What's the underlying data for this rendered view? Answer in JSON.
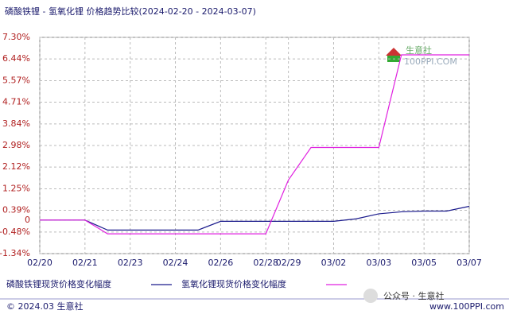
{
  "chart_data": {
    "type": "line",
    "title": "磷酸铁锂 - 氢氧化锂 价格趋势比较(2024-02-20 - 2024-03-07)",
    "categories": [
      "02/20",
      null,
      "02/21",
      null,
      "02/23",
      null,
      "02/24",
      null,
      "02/26",
      null,
      "02/28",
      "02/29",
      null,
      "03/02",
      null,
      "03/03",
      null,
      "03/05",
      null,
      "03/07"
    ],
    "series": [
      {
        "name": "磷酸铁锂现货价格变化幅度",
        "color": "#1a1a8c",
        "values": [
          0,
          0,
          0,
          -0.4,
          -0.4,
          -0.4,
          -0.4,
          -0.4,
          -0.05,
          -0.05,
          -0.05,
          -0.05,
          -0.05,
          -0.05,
          0.05,
          0.25,
          0.33,
          0.36,
          0.36,
          0.55
        ]
      },
      {
        "name": "氢氧化锂现货价格变化幅度",
        "color": "#e020e0",
        "values": [
          0,
          0,
          0,
          -0.55,
          -0.55,
          -0.55,
          -0.55,
          -0.55,
          -0.55,
          -0.55,
          -0.55,
          1.6,
          2.9,
          2.9,
          2.9,
          2.9,
          6.6,
          6.6,
          6.6,
          6.6
        ]
      }
    ],
    "ylim": [
      -1.34,
      7.3
    ],
    "yticks": [
      {
        "value": 7.3,
        "label": "7.30%"
      },
      {
        "value": 6.44,
        "label": "6.44%"
      },
      {
        "value": 5.57,
        "label": "5.57%"
      },
      {
        "value": 4.71,
        "label": "4.71%"
      },
      {
        "value": 3.84,
        "label": "3.84%"
      },
      {
        "value": 2.98,
        "label": "2.98%"
      },
      {
        "value": 2.12,
        "label": "2.12%"
      },
      {
        "value": 1.25,
        "label": "1.25%"
      },
      {
        "value": 0.39,
        "label": "0.39%"
      },
      0,
      {
        "value": -0.48,
        "label": "-0.48%"
      },
      {
        "value": -1.34,
        "label": "-1.34%"
      }
    ],
    "grid": true
  },
  "watermark": {
    "brand": "生意社",
    "site": "100PPI.COM"
  },
  "footer": {
    "copyright": "© 2024.03 生意社",
    "account": "公众号 · 生意社",
    "url": "www.100PPI.com"
  }
}
